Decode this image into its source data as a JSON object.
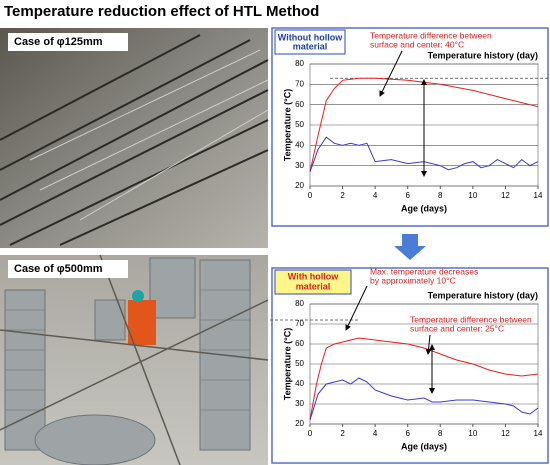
{
  "title": "Temperature reduction effect of HTL Method",
  "photos": [
    {
      "caption": "Case of φ125mm"
    },
    {
      "caption": "Case of φ500mm"
    }
  ],
  "chart_data": [
    {
      "type": "line",
      "label": [
        "Without hollow",
        "material"
      ],
      "header": "Temperature history (day)",
      "x_label": "Age (days)",
      "y_label": "Temperature (°C)",
      "annotations": [
        {
          "lines": [
            "Temperature difference between",
            "surface and center: 40°C"
          ]
        }
      ],
      "xlim": [
        0,
        14
      ],
      "xticks": [
        0,
        2,
        4,
        6,
        8,
        10,
        12,
        14
      ],
      "ylim": [
        20,
        80
      ],
      "yticks": [
        20,
        30,
        40,
        50,
        60,
        70,
        80
      ],
      "grid": true,
      "ref_line": 73,
      "series": [
        {
          "color": "#e8201c",
          "x": [
            0,
            0.5,
            1,
            1.5,
            2,
            3,
            4,
            5,
            6,
            7,
            8,
            9,
            10,
            11,
            12,
            13,
            14
          ],
          "values": [
            27,
            45,
            62,
            68,
            72,
            73,
            73,
            72.5,
            72,
            71,
            70,
            68.5,
            67,
            65,
            63,
            61,
            59
          ]
        },
        {
          "color": "#3a3ad0",
          "x": [
            0,
            0.5,
            1,
            1.5,
            2,
            2.5,
            3,
            3.5,
            4,
            5,
            6,
            7,
            8,
            8.5,
            9,
            9.5,
            10,
            10.5,
            11,
            11.5,
            12,
            12.5,
            13,
            13.5,
            14
          ],
          "values": [
            27,
            38,
            44,
            41,
            40,
            41,
            40,
            41,
            32,
            33,
            31,
            32,
            30,
            28,
            29,
            31,
            32,
            29,
            30,
            33,
            31,
            29,
            33,
            30,
            32
          ]
        }
      ]
    },
    {
      "type": "line",
      "label": [
        "With hollow",
        "material"
      ],
      "header": "Temperature history (day)",
      "x_label": "Age (days)",
      "y_label": "Temperature (°C)",
      "annotations": [
        {
          "lines": [
            "Max. temperature decreases",
            "by approximately 10°C"
          ]
        },
        {
          "lines": [
            "Temperature difference between",
            "surface and center: 25°C"
          ]
        }
      ],
      "xlim": [
        0,
        14
      ],
      "xticks": [
        0,
        2,
        4,
        6,
        8,
        10,
        12,
        14
      ],
      "ylim": [
        20,
        80
      ],
      "yticks": [
        20,
        30,
        40,
        50,
        60,
        70,
        80
      ],
      "grid": true,
      "ref_line": 72,
      "series": [
        {
          "color": "#e8201c",
          "x": [
            0,
            0.4,
            0.7,
            1,
            1.5,
            2,
            3,
            4,
            5,
            6,
            7,
            8,
            9,
            10,
            11,
            12,
            13,
            14
          ],
          "values": [
            22,
            40,
            50,
            58,
            60,
            61,
            63,
            62,
            61,
            60,
            58,
            55,
            52,
            50,
            47,
            45,
            44,
            45
          ]
        },
        {
          "color": "#3a3ad0",
          "x": [
            0,
            0.5,
            1,
            1.5,
            2,
            2.5,
            3,
            3.5,
            4,
            5,
            6,
            7,
            7.5,
            8,
            9,
            10,
            11,
            12,
            12.5,
            13,
            13.5,
            14
          ],
          "values": [
            22,
            35,
            40,
            41,
            42,
            40,
            43,
            41,
            37,
            34,
            32,
            33,
            31,
            31,
            32,
            32,
            31,
            30,
            29,
            26,
            25,
            28
          ]
        }
      ]
    }
  ]
}
